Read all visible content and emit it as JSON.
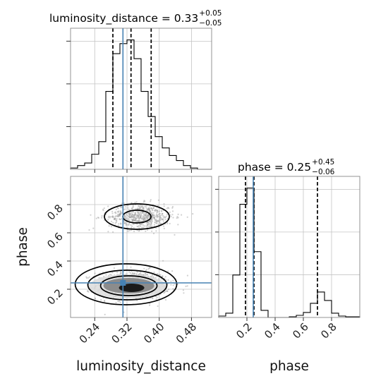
{
  "chart_data": {
    "type": "corner",
    "parameters": [
      "luminosity_distance",
      "phase"
    ],
    "titles": {
      "luminosity_distance": {
        "prefix": "luminosity_distance = 0.33",
        "plus": "+0.05",
        "minus": "−0.05"
      },
      "phase": {
        "prefix": "phase = 0.25",
        "plus": "+0.45",
        "minus": "−0.06"
      }
    },
    "axis_labels": {
      "x1": "luminosity_distance",
      "x2": "phase",
      "y": "phase"
    },
    "ticks": {
      "luminosity_distance": {
        "values": [
          0.24,
          0.32,
          0.4,
          0.48
        ],
        "labels": [
          "0.24",
          "0.32",
          "0.40",
          "0.48"
        ]
      },
      "phase_x": {
        "values": [
          0.2,
          0.4,
          0.6,
          0.8
        ],
        "labels": [
          "0.2",
          "0.4",
          "0.6",
          "0.8"
        ]
      },
      "phase_y": {
        "values": [
          0.2,
          0.4,
          0.6,
          0.8
        ],
        "labels": [
          "0.2",
          "0.4",
          "0.6",
          "0.8"
        ]
      }
    },
    "ranges": {
      "luminosity_distance": [
        0.18,
        0.53
      ],
      "phase": [
        0.0,
        1.0
      ]
    },
    "truths": {
      "luminosity_distance": 0.31,
      "phase": 0.245
    },
    "quantiles": {
      "luminosity_distance": [
        0.285,
        0.33,
        0.38
      ],
      "phase": [
        0.19,
        0.25,
        0.7
      ]
    },
    "hist_luminosity_distance": {
      "edges": [
        0.18,
        0.1975,
        0.215,
        0.2325,
        0.25,
        0.2675,
        0.285,
        0.3025,
        0.32,
        0.3375,
        0.355,
        0.3725,
        0.39,
        0.4075,
        0.425,
        0.4425,
        0.46,
        0.4775,
        0.495,
        0.5125,
        0.53
      ],
      "counts": [
        1,
        3,
        5,
        12,
        22,
        62,
        92,
        100,
        103,
        88,
        62,
        42,
        26,
        17,
        11,
        7,
        3,
        1,
        0,
        0
      ]
    },
    "hist_phase": {
      "edges": [
        0.0,
        0.05,
        0.1,
        0.15,
        0.2,
        0.25,
        0.3,
        0.35,
        0.4,
        0.45,
        0.5,
        0.55,
        0.6,
        0.65,
        0.7,
        0.75,
        0.8,
        0.85,
        0.9,
        0.95,
        1.0
      ],
      "counts": [
        2,
        6,
        60,
        160,
        183,
        93,
        10,
        0,
        0,
        0,
        1,
        3,
        7,
        20,
        36,
        24,
        6,
        2,
        1,
        1
      ]
    },
    "modes": [
      {
        "center": [
          0.335,
          0.23
        ],
        "spread": [
          0.045,
          0.05
        ]
      },
      {
        "center": [
          0.355,
          0.715
        ],
        "spread": [
          0.04,
          0.045
        ]
      }
    ],
    "grid": true
  }
}
